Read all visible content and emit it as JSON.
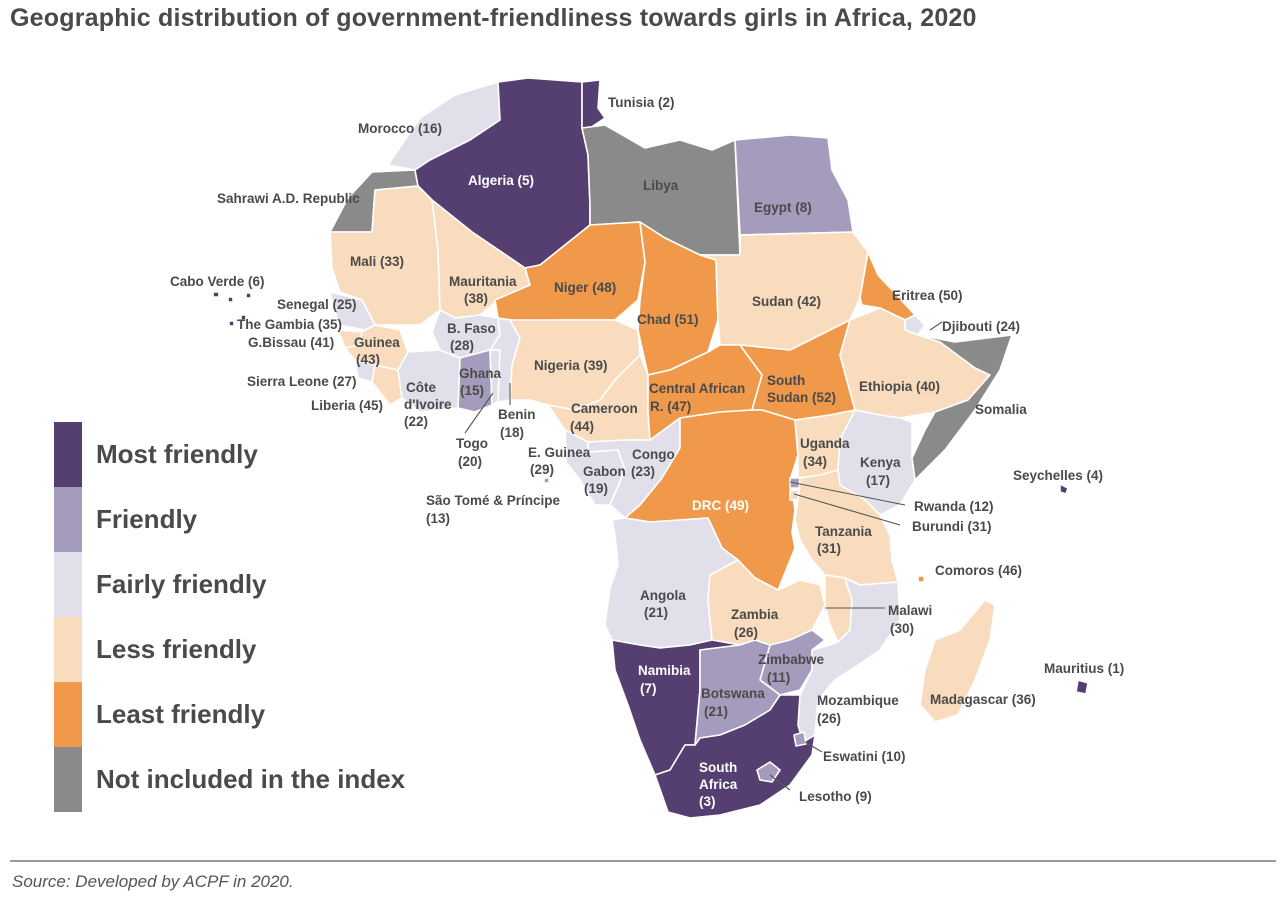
{
  "title": "Geographic distribution of government-friendliness towards girls in Africa, 2020",
  "source": "Source: Developed by ACPF in 2020.",
  "colors": {
    "most": "#553f70",
    "friendly": "#a59cbd",
    "fairly": "#e1dfea",
    "less": "#f8dcbd",
    "least": "#f0994a",
    "excluded": "#8a8a8a"
  },
  "legend": [
    {
      "label": "Most friendly",
      "color": "#553f70"
    },
    {
      "label": "Friendly",
      "color": "#a59cbd"
    },
    {
      "label": "Fairly friendly",
      "color": "#e1dfea"
    },
    {
      "label": "Less friendly",
      "color": "#f8dcbd"
    },
    {
      "label": "Least friendly",
      "color": "#f0994a"
    },
    {
      "label": "Not included in the index",
      "color": "#8a8a8a"
    }
  ],
  "countries": {
    "tunisia": "Tunisia (2)",
    "morocco": "Morocco (16)",
    "algeria": "Algeria (5)",
    "libya": "Libya",
    "egypt": "Egypt (8)",
    "sahrawi": "Sahrawi A.D. Republic",
    "mali": "Mali (33)",
    "mauritania_1": "Mauritania",
    "mauritania_2": "(38)",
    "niger": "Niger (48)",
    "chad": "Chad (51)",
    "sudan": "Sudan (42)",
    "eritrea": "Eritrea (50)",
    "djibouti": "Djibouti (24)",
    "cabo_verde": "Cabo Verde (6)",
    "senegal": "Senegal (25)",
    "gambia": "The Gambia (35)",
    "gbissau": "G.Bissau (41)",
    "guinea_1": "Guinea",
    "guinea_2": "(43)",
    "bfaso_1": "B. Faso",
    "bfaso_2": "(28)",
    "sierra_leone": "Sierra Leone (27)",
    "liberia": "Liberia (45)",
    "cote_1": "Côte",
    "cote_2": "d'Ivoire",
    "cote_3": "(22)",
    "ghana_1": "Ghana",
    "ghana_2": "(15)",
    "nigeria": "Nigeria (39)",
    "benin_1": "Benin",
    "benin_2": "(18)",
    "togo_1": "Togo",
    "togo_2": "(20)",
    "car_1": "Central African",
    "car_2": "R. (47)",
    "ssudan_1": "South",
    "ssudan_2": "Sudan (52)",
    "ethiopia": "Ethiopia (40)",
    "somalia": "Somalia",
    "cameroon_1": "Cameroon",
    "cameroon_2": "(44)",
    "eguinea_1": "E. Guinea",
    "eguinea_2": "(29)",
    "gabon_1": "Gabon",
    "gabon_2": "(19)",
    "congo_1": "Congo",
    "congo_2": "(23)",
    "sao_tome_1": "São Tomé & Príncipe",
    "sao_tome_2": "(13)",
    "uganda_1": "Uganda",
    "uganda_2": "(34)",
    "kenya_1": "Kenya",
    "kenya_2": "(17)",
    "seychelles": "Seychelles (4)",
    "drc": "DRC (49)",
    "rwanda": "Rwanda (12)",
    "burundi": "Burundi (31)",
    "tanzania_1": "Tanzania",
    "tanzania_2": "(31)",
    "comoros": "Comoros (46)",
    "angola_1": "Angola",
    "angola_2": "(21)",
    "zambia_1": "Zambia",
    "zambia_2": "(26)",
    "malawi_1": "Malawi",
    "malawi_2": "(30)",
    "namibia_1": "Namibia",
    "namibia_2": "(7)",
    "zimbabwe_1": "Zimbabwe",
    "zimbabwe_2": "(11)",
    "mauritius": "Mauritius (1)",
    "botswana_1": "Botswana",
    "botswana_2": "(21)",
    "mozambique_1": "Mozambique",
    "mozambique_2": "(26)",
    "madagascar": "Madagascar (36)",
    "eswatini": "Eswatini (10)",
    "safrica_1": "South",
    "safrica_2": "Africa",
    "safrica_3": "(3)",
    "lesotho": "Lesotho (9)"
  }
}
